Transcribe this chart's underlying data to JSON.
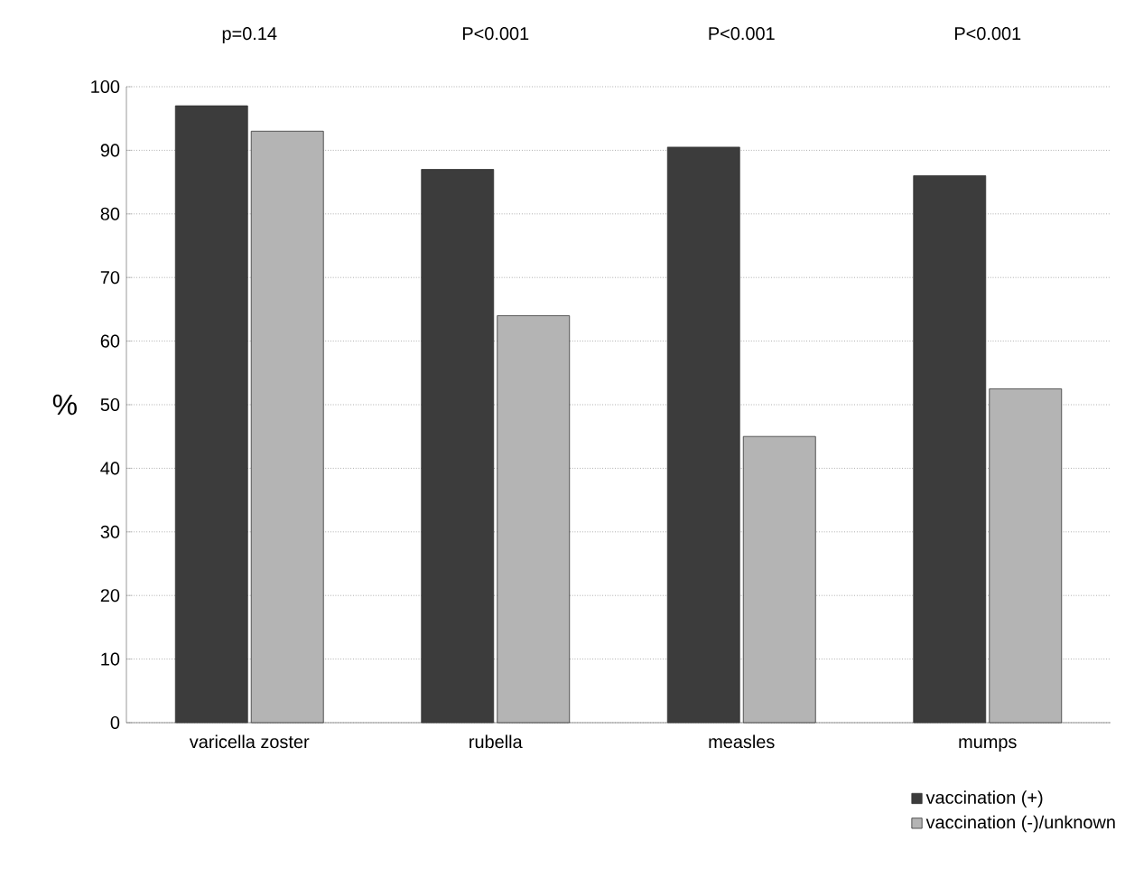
{
  "chart_data": {
    "type": "bar",
    "ylabel": "%",
    "categories": [
      "varicella zoster",
      "rubella",
      "measles",
      "mumps"
    ],
    "series": [
      {
        "name": "vaccination (+)",
        "color": "#3c3c3c",
        "values": [
          97,
          87,
          90.5,
          86
        ]
      },
      {
        "name": "vaccination (-)/unknown",
        "color": "#b4b4b4",
        "values": [
          93,
          64,
          45,
          52.5
        ]
      }
    ],
    "ylim": [
      0,
      100
    ],
    "yticks": [
      0,
      10,
      20,
      30,
      40,
      50,
      60,
      70,
      80,
      90,
      100
    ],
    "grid": "y",
    "legend": "bottom right",
    "annotations": [
      "p=0.14",
      "P<0.001",
      "P<0.001",
      "P<0.001"
    ]
  }
}
